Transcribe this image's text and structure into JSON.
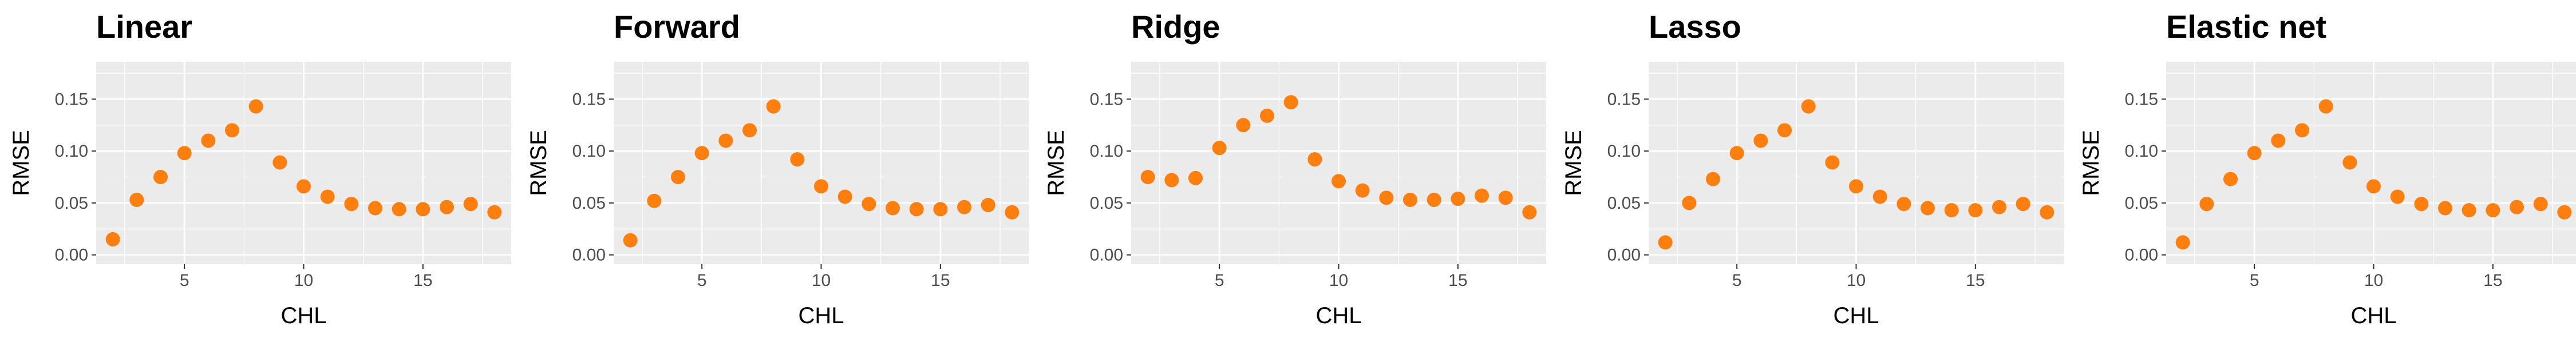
{
  "colors": {
    "panel_bg": "#ebebeb",
    "grid": "#ffffff",
    "point": "#ff7f0e",
    "tick_text": "#4d4d4d",
    "title_text": "#000000"
  },
  "chart_data": [
    {
      "type": "scatter",
      "title": "Linear",
      "xlabel": "CHL",
      "ylabel": "RMSE",
      "xlim": [
        1.3,
        18.7
      ],
      "ylim": [
        -0.009,
        0.186
      ],
      "xticks": [
        5,
        10,
        15
      ],
      "xtick_labels": [
        "5",
        "10",
        "15"
      ],
      "yticks": [
        0,
        0.05,
        0.1,
        0.15
      ],
      "ytick_labels": [
        "0.00",
        "0.05",
        "0.10",
        "0.15"
      ],
      "grid": true,
      "x": [
        2,
        3,
        4,
        5,
        6,
        7,
        8,
        9,
        10,
        11,
        12,
        13,
        14,
        15,
        16,
        17,
        18
      ],
      "y": [
        0.015,
        0.053,
        0.075,
        0.098,
        0.11,
        0.12,
        0.143,
        0.089,
        0.066,
        0.056,
        0.049,
        0.045,
        0.044,
        0.044,
        0.046,
        0.049,
        0.041
      ]
    },
    {
      "type": "scatter",
      "title": "Forward",
      "xlabel": "CHL",
      "ylabel": "RMSE",
      "xlim": [
        1.3,
        18.7
      ],
      "ylim": [
        -0.009,
        0.186
      ],
      "xticks": [
        5,
        10,
        15
      ],
      "xtick_labels": [
        "5",
        "10",
        "15"
      ],
      "yticks": [
        0,
        0.05,
        0.1,
        0.15
      ],
      "ytick_labels": [
        "0.00",
        "0.05",
        "0.10",
        "0.15"
      ],
      "grid": true,
      "x": [
        2,
        3,
        4,
        5,
        6,
        7,
        8,
        9,
        10,
        11,
        12,
        13,
        14,
        15,
        16,
        17,
        18
      ],
      "y": [
        0.014,
        0.052,
        0.075,
        0.098,
        0.11,
        0.12,
        0.143,
        0.092,
        0.066,
        0.056,
        0.049,
        0.045,
        0.044,
        0.044,
        0.046,
        0.048,
        0.041
      ]
    },
    {
      "type": "scatter",
      "title": "Ridge",
      "xlabel": "CHL",
      "ylabel": "RMSE",
      "xlim": [
        1.3,
        18.7
      ],
      "ylim": [
        -0.009,
        0.186
      ],
      "xticks": [
        5,
        10,
        15
      ],
      "xtick_labels": [
        "5",
        "10",
        "15"
      ],
      "yticks": [
        0,
        0.05,
        0.1,
        0.15
      ],
      "ytick_labels": [
        "0.00",
        "0.05",
        "0.10",
        "0.15"
      ],
      "grid": true,
      "x": [
        2,
        3,
        4,
        5,
        6,
        7,
        8,
        9,
        10,
        11,
        12,
        13,
        14,
        15,
        16,
        17,
        18
      ],
      "y": [
        0.075,
        0.072,
        0.074,
        0.103,
        0.125,
        0.134,
        0.147,
        0.092,
        0.071,
        0.062,
        0.055,
        0.053,
        0.053,
        0.054,
        0.057,
        0.055,
        0.041
      ]
    },
    {
      "type": "scatter",
      "title": "Lasso",
      "xlabel": "CHL",
      "ylabel": "RMSE",
      "xlim": [
        1.3,
        18.7
      ],
      "ylim": [
        -0.009,
        0.186
      ],
      "xticks": [
        5,
        10,
        15
      ],
      "xtick_labels": [
        "5",
        "10",
        "15"
      ],
      "yticks": [
        0,
        0.05,
        0.1,
        0.15
      ],
      "ytick_labels": [
        "0.00",
        "0.05",
        "0.10",
        "0.15"
      ],
      "grid": true,
      "x": [
        2,
        3,
        4,
        5,
        6,
        7,
        8,
        9,
        10,
        11,
        12,
        13,
        14,
        15,
        16,
        17,
        18
      ],
      "y": [
        0.012,
        0.05,
        0.073,
        0.098,
        0.11,
        0.12,
        0.143,
        0.089,
        0.066,
        0.056,
        0.049,
        0.045,
        0.043,
        0.043,
        0.046,
        0.049,
        0.041
      ]
    },
    {
      "type": "scatter",
      "title": "Elastic net",
      "xlabel": "CHL",
      "ylabel": "RMSE",
      "xlim": [
        1.3,
        18.7
      ],
      "ylim": [
        -0.009,
        0.186
      ],
      "xticks": [
        5,
        10,
        15
      ],
      "xtick_labels": [
        "5",
        "10",
        "15"
      ],
      "yticks": [
        0,
        0.05,
        0.1,
        0.15
      ],
      "ytick_labels": [
        "0.00",
        "0.05",
        "0.10",
        "0.15"
      ],
      "grid": true,
      "x": [
        2,
        3,
        4,
        5,
        6,
        7,
        8,
        9,
        10,
        11,
        12,
        13,
        14,
        15,
        16,
        17,
        18
      ],
      "y": [
        0.012,
        0.049,
        0.073,
        0.098,
        0.11,
        0.12,
        0.143,
        0.089,
        0.066,
        0.056,
        0.049,
        0.045,
        0.043,
        0.043,
        0.046,
        0.049,
        0.041
      ]
    }
  ]
}
